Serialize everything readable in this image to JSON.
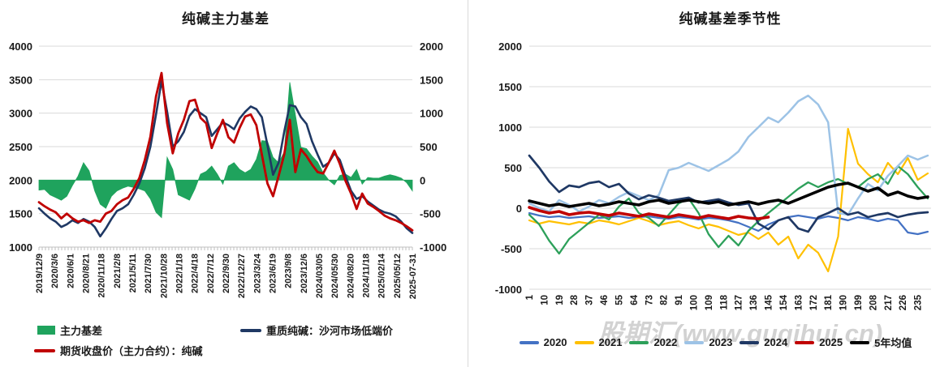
{
  "watermark": "股期汇(www.guqihui.cn)",
  "chart_data": [
    {
      "id": "main-basis",
      "type": "composite-bar-line",
      "title": "纯碱主力基差",
      "grid": true,
      "y_left": {
        "min": 1000,
        "max": 4000,
        "ticks": [
          "4000",
          "3500",
          "3000",
          "2500",
          "2000",
          "1500",
          "1000"
        ]
      },
      "y_right": {
        "min": -1000,
        "max": 2000,
        "ticks": [
          "2000",
          "1500",
          "1000",
          "500",
          "0",
          "-500",
          "-1000"
        ]
      },
      "x_ticklabels": [
        "2019/12/9",
        "2020/3/6",
        "2020/6/1",
        "2020/8/21",
        "2020/11/18",
        "2021/2/8",
        "2021/5/11",
        "2021/7/30",
        "2021/10/28",
        "2022/1/18",
        "2022/4/18",
        "2022/7/12",
        "2022/9/30",
        "2022/12/27",
        "2023/3/24",
        "2023/6/19",
        "2023/9/8",
        "2023/12/6",
        "2024/03/05",
        "2024/05/30",
        "2024/08/20",
        "2024/11/18",
        "2025/02/14",
        "2025/05/12",
        "2025-07-31"
      ],
      "series": [
        {
          "name": "主力基差",
          "type": "bar",
          "axis": "right",
          "color": "#1fa35d",
          "values": [
            -150,
            -140,
            -220,
            -260,
            -300,
            -240,
            -80,
            60,
            260,
            140,
            -160,
            -360,
            -420,
            -240,
            -160,
            -120,
            -90,
            -110,
            -130,
            -160,
            -280,
            -480,
            -560,
            340,
            160,
            -220,
            -260,
            -300,
            -130,
            90,
            130,
            210,
            90,
            -60,
            210,
            260,
            160,
            110,
            160,
            310,
            590,
            580,
            340,
            260,
            420,
            1460,
            980,
            490,
            470,
            360,
            270,
            110,
            0,
            -70,
            70,
            90,
            40,
            160,
            -60,
            40,
            30,
            30,
            60,
            80,
            60,
            30,
            -40,
            -160
          ]
        },
        {
          "name": "重质纯碱：沙河市场低端价",
          "type": "line",
          "axis": "left",
          "color": "#1f3864",
          "width": 2.6,
          "values": [
            1580,
            1500,
            1430,
            1380,
            1300,
            1340,
            1400,
            1360,
            1420,
            1380,
            1300,
            1160,
            1280,
            1420,
            1540,
            1580,
            1640,
            1780,
            1950,
            2180,
            2500,
            2980,
            3480,
            3020,
            2500,
            2580,
            2720,
            2960,
            3060,
            3000,
            2940,
            2660,
            2760,
            2860,
            2820,
            2760,
            2920,
            3020,
            3100,
            3060,
            2940,
            2520,
            2080,
            2260,
            2720,
            3120,
            3100,
            2940,
            2840,
            2580,
            2380,
            2200,
            2260,
            2400,
            2300,
            2060,
            1840,
            1720,
            1760,
            1680,
            1620,
            1560,
            1520,
            1500,
            1460,
            1380,
            1280,
            1210
          ]
        },
        {
          "name": "期货收盘价（主力合约）：纯碱",
          "type": "line",
          "axis": "left",
          "color": "#c00000",
          "width": 2.8,
          "values": [
            1670,
            1610,
            1560,
            1520,
            1430,
            1500,
            1430,
            1380,
            1400,
            1360,
            1400,
            1380,
            1500,
            1540,
            1640,
            1700,
            1740,
            1870,
            2030,
            2300,
            2650,
            3250,
            3600,
            2850,
            2400,
            2700,
            2900,
            3180,
            3200,
            2930,
            2850,
            2480,
            2700,
            2900,
            2640,
            2560,
            2780,
            2950,
            2980,
            2820,
            2380,
            1950,
            1760,
            2060,
            2380,
            2900,
            2120,
            2460,
            2360,
            2230,
            2120,
            2100,
            2260,
            2440,
            2240,
            1990,
            1800,
            1570,
            1800,
            1650,
            1600,
            1540,
            1470,
            1430,
            1400,
            1360,
            1310,
            1250
          ]
        }
      ]
    },
    {
      "id": "basis-seasonality",
      "type": "line",
      "title": "纯碱基差季节性",
      "grid": true,
      "ylim": [
        -1000,
        2000
      ],
      "y_ticks": [
        "2000",
        "1500",
        "1000",
        "500",
        "0",
        "-500",
        "-1000"
      ],
      "xlim": [
        1,
        243
      ],
      "x_ticklabels": [
        "1",
        "10",
        "19",
        "28",
        "37",
        "46",
        "55",
        "64",
        "73",
        "82",
        "91",
        "100",
        "109",
        "118",
        "127",
        "136",
        "145",
        "154",
        "163",
        "172",
        "181",
        "190",
        "199",
        "208",
        "217",
        "226",
        "235"
      ],
      "x_sample": [
        1,
        7,
        13,
        19,
        25,
        31,
        37,
        43,
        49,
        55,
        61,
        67,
        73,
        79,
        85,
        91,
        97,
        103,
        109,
        115,
        121,
        127,
        133,
        139,
        145,
        151,
        157,
        163,
        169,
        175,
        181,
        187,
        193,
        199,
        205,
        211,
        217,
        223,
        229,
        235,
        241
      ],
      "series": [
        {
          "name": "2020",
          "color": "#4472c4",
          "width": 2.2,
          "values": [
            -60,
            -90,
            -110,
            -100,
            -120,
            -110,
            -100,
            -120,
            -110,
            -100,
            -120,
            -110,
            -100,
            -120,
            -130,
            -110,
            -120,
            -140,
            -120,
            -130,
            -150,
            -180,
            -230,
            -280,
            -200,
            -150,
            -110,
            -90,
            -110,
            -130,
            -100,
            -120,
            -150,
            -110,
            -130,
            -160,
            -130,
            -150,
            -300,
            -320,
            -290
          ]
        },
        {
          "name": "2021",
          "color": "#ffc000",
          "width": 2.2,
          "values": [
            -150,
            -190,
            -160,
            -180,
            -200,
            -170,
            -190,
            -150,
            -170,
            -200,
            -160,
            -120,
            -160,
            -210,
            -180,
            -160,
            -210,
            -250,
            -200,
            -230,
            -280,
            -330,
            -300,
            -380,
            -300,
            -450,
            -350,
            -620,
            -450,
            -550,
            -780,
            -350,
            980,
            550,
            420,
            320,
            560,
            420,
            620,
            350,
            430
          ]
        },
        {
          "name": "2022",
          "color": "#2da05a",
          "width": 2.3,
          "values": [
            -80,
            -200,
            -400,
            -560,
            -380,
            -280,
            -180,
            -80,
            -140,
            20,
            120,
            -60,
            -120,
            -220,
            -80,
            60,
            120,
            -60,
            -320,
            -480,
            -340,
            -460,
            -280,
            -160,
            -60,
            40,
            140,
            240,
            320,
            260,
            320,
            360,
            300,
            260,
            360,
            420,
            300,
            520,
            420,
            260,
            120
          ]
        },
        {
          "name": "2023",
          "color": "#9dc3e6",
          "width": 2.5,
          "values": [
            60,
            0,
            -40,
            100,
            40,
            -40,
            20,
            100,
            60,
            140,
            200,
            150,
            100,
            160,
            470,
            500,
            560,
            510,
            460,
            530,
            600,
            700,
            880,
            1000,
            1120,
            1060,
            1180,
            1320,
            1390,
            1280,
            1060,
            -60,
            -80,
            120,
            300,
            220,
            400,
            520,
            650,
            600,
            650
          ]
        },
        {
          "name": "2024",
          "color": "#1f3864",
          "width": 2.7,
          "values": [
            650,
            500,
            330,
            200,
            280,
            260,
            310,
            330,
            260,
            300,
            180,
            110,
            160,
            130,
            90,
            110,
            130,
            70,
            90,
            110,
            70,
            40,
            60,
            -190,
            -260,
            -150,
            -110,
            -250,
            -290,
            -110,
            -60,
            0,
            -80,
            -50,
            -110,
            -80,
            -60,
            -110,
            -80,
            -60,
            -50
          ]
        },
        {
          "name": "2025",
          "color": "#c00000",
          "width": 3.6,
          "values": [
            10,
            -30,
            -60,
            -40,
            -80,
            -60,
            -50,
            -70,
            -90,
            -60,
            -80,
            -100,
            -70,
            -90,
            -110,
            -80,
            -100,
            -120,
            -90,
            -110,
            -130,
            -100,
            -120,
            -130,
            -110
          ]
        },
        {
          "name": "5年均值",
          "color": "#000000",
          "width": 3.6,
          "values": [
            90,
            60,
            30,
            50,
            20,
            40,
            60,
            30,
            50,
            80,
            60,
            40,
            80,
            100,
            60,
            80,
            100,
            80,
            60,
            80,
            40,
            60,
            80,
            50,
            80,
            100,
            60,
            110,
            160,
            210,
            260,
            290,
            310,
            260,
            210,
            250,
            160,
            200,
            150,
            120,
            140
          ]
        }
      ]
    }
  ]
}
